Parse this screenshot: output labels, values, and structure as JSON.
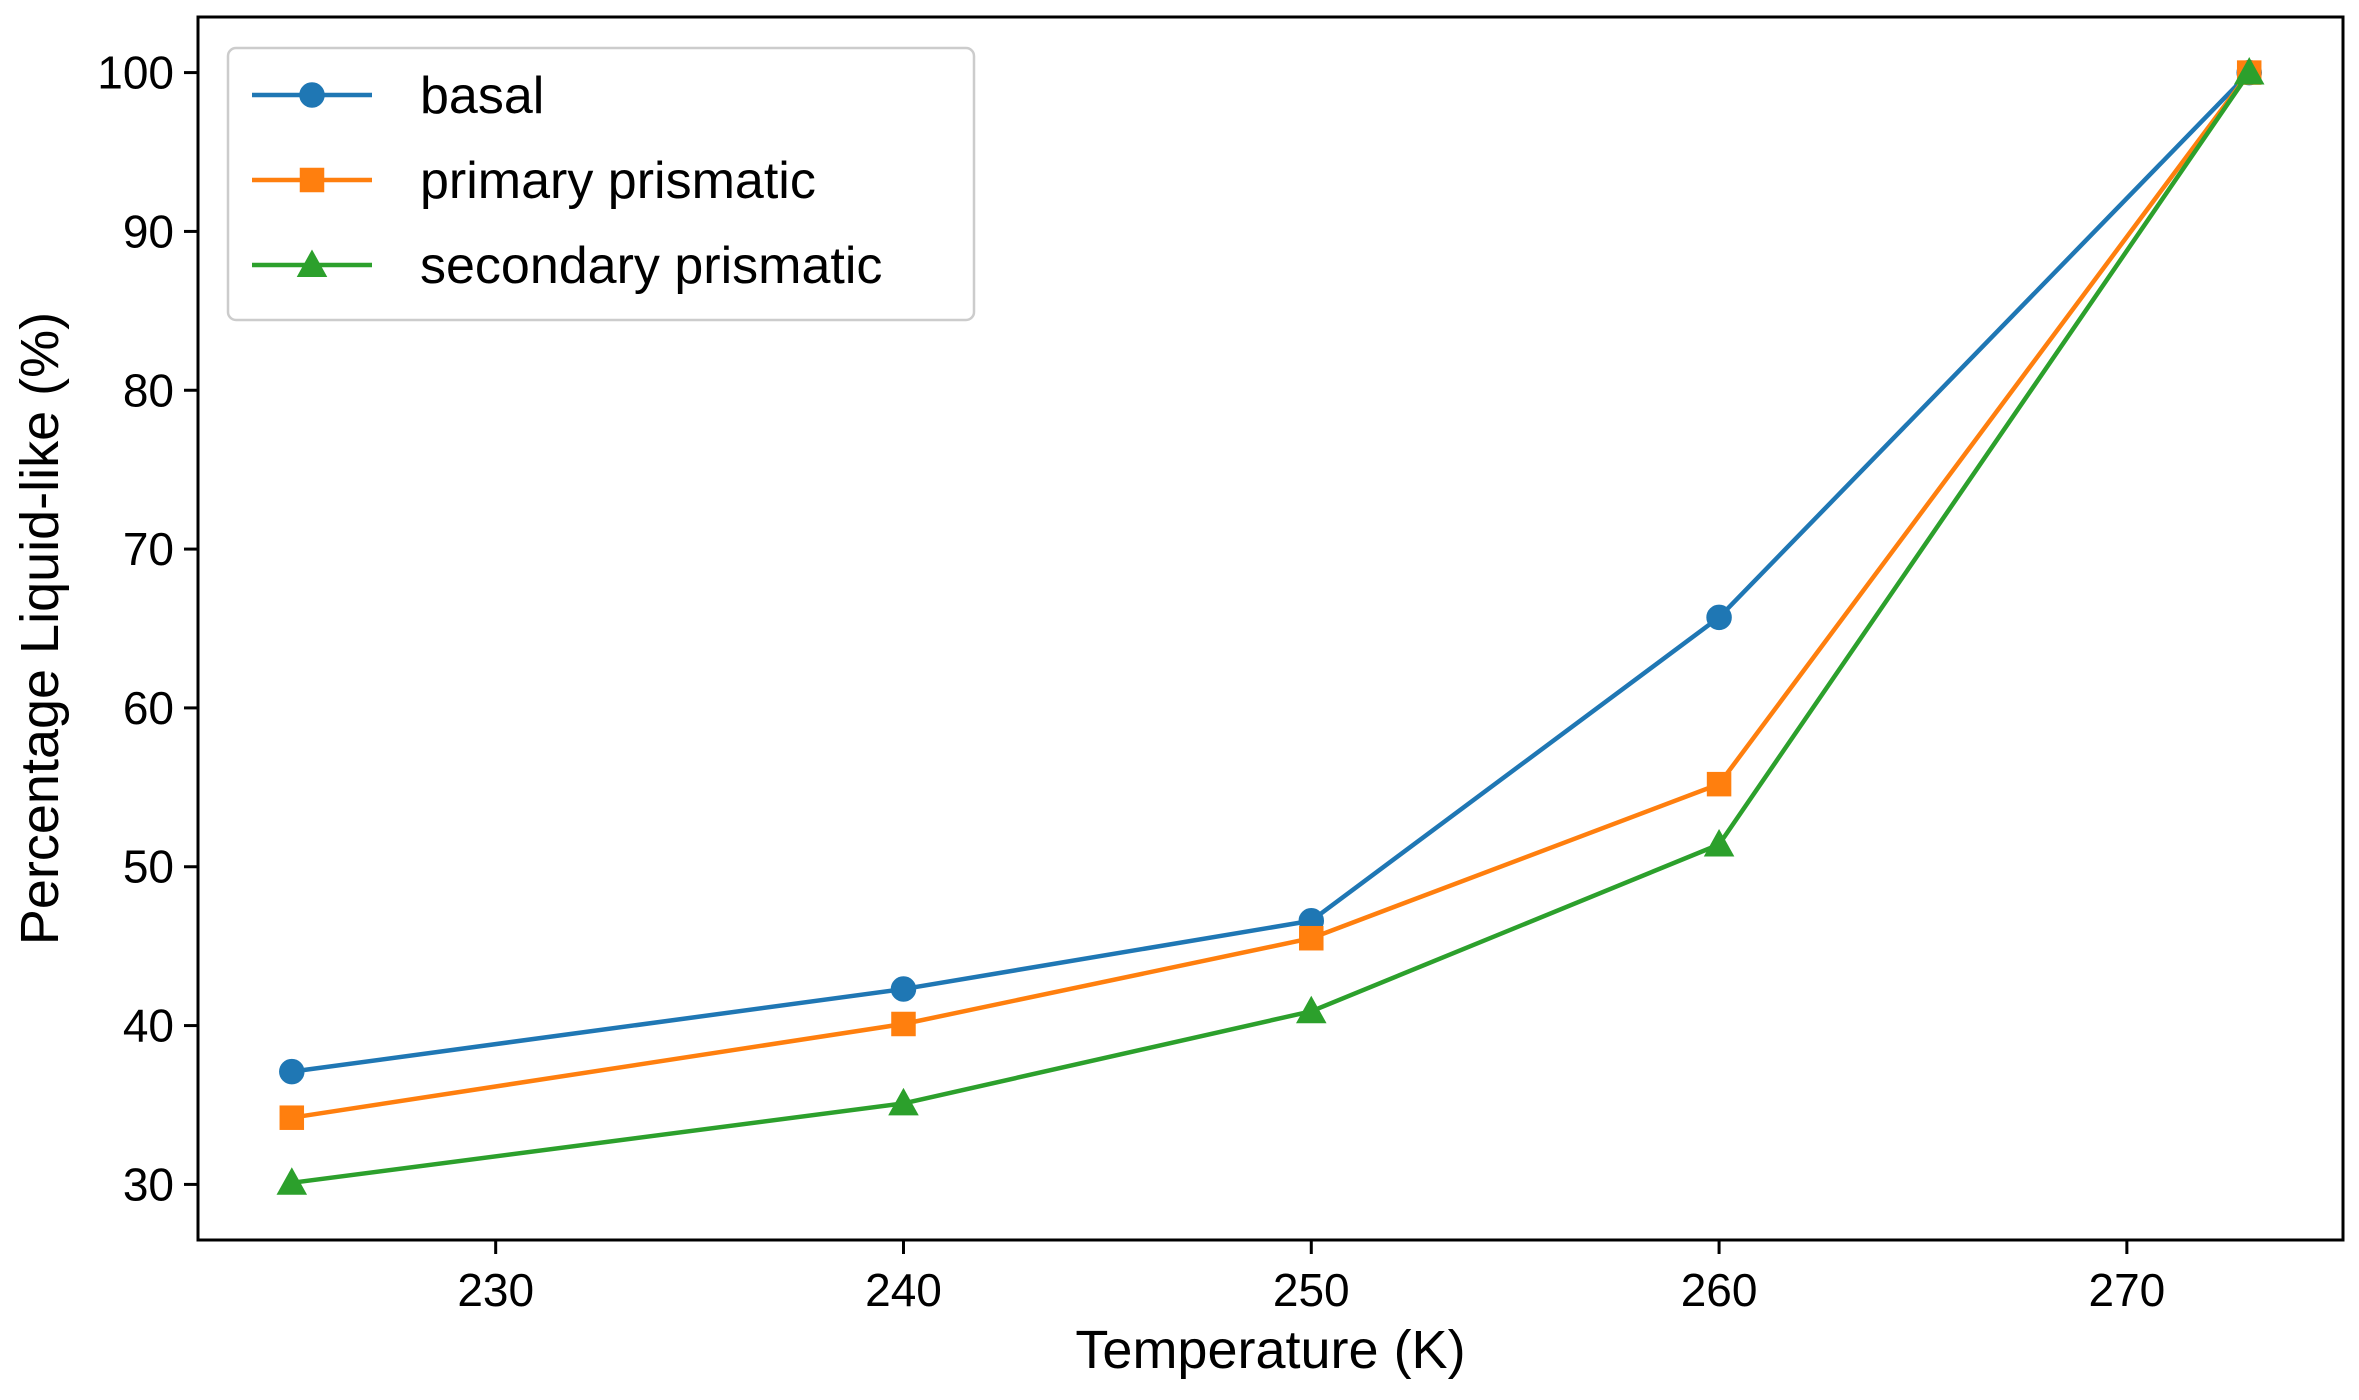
{
  "chart_data": {
    "type": "line",
    "title": "",
    "xlabel": "Temperature (K)",
    "ylabel": "Percentage Liquid-like (%)",
    "xlim": [
      222.7,
      275.3
    ],
    "ylim": [
      26.5,
      103.5
    ],
    "xticks": [
      230,
      240,
      250,
      260,
      270
    ],
    "yticks": [
      30,
      40,
      50,
      60,
      70,
      80,
      90,
      100
    ],
    "x": [
      225,
      240,
      250,
      260,
      273
    ],
    "grid": false,
    "legend_position": "top-left",
    "series": [
      {
        "name": "basal",
        "color": "#1f77b4",
        "marker": "circle",
        "values": [
          37.1,
          42.3,
          46.6,
          65.7,
          100.0
        ]
      },
      {
        "name": "primary prismatic",
        "color": "#ff7f0e",
        "marker": "square",
        "values": [
          34.2,
          40.1,
          45.5,
          55.2,
          100.0
        ]
      },
      {
        "name": "secondary prismatic",
        "color": "#2ca02c",
        "marker": "triangle",
        "values": [
          30.1,
          35.1,
          40.9,
          51.4,
          100.0
        ]
      }
    ]
  }
}
